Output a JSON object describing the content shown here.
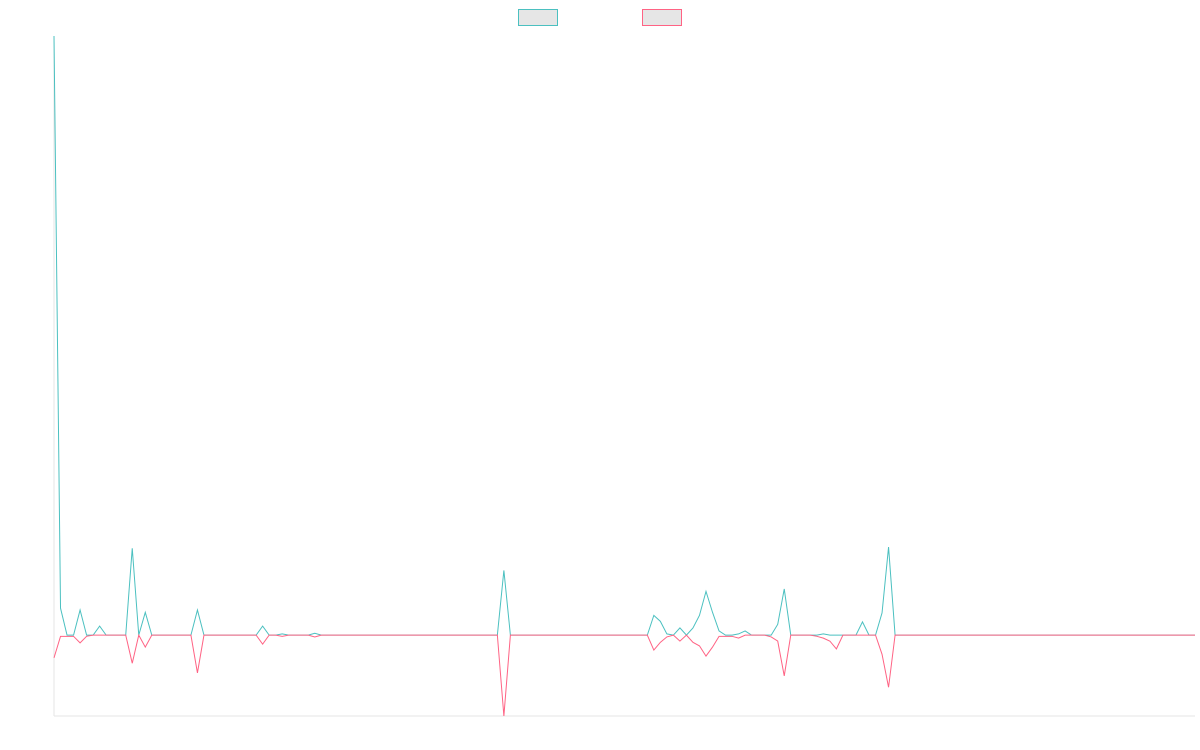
{
  "chart_data": {
    "type": "line",
    "ylim": [
      -13.5,
      100
    ],
    "series": [
      {
        "color": "#4bc0c0",
        "values": [
          100,
          4.5,
          0,
          0,
          4.2,
          0,
          0,
          1.5,
          0,
          0,
          0,
          0,
          14.5,
          0,
          3.8,
          0,
          0,
          0,
          0,
          0,
          0,
          0,
          4.2,
          0,
          0,
          0,
          0,
          0,
          0,
          0,
          0,
          0,
          1.5,
          0,
          0,
          0.2,
          0,
          0,
          0,
          0,
          0.3,
          0,
          0,
          0,
          0,
          0,
          0,
          0,
          0,
          0,
          0,
          0,
          0,
          0,
          0,
          0,
          0,
          0,
          0,
          0,
          0,
          0,
          0,
          0,
          0,
          0,
          0,
          0,
          0,
          10.8,
          0,
          0,
          0,
          0,
          0,
          0,
          0,
          0,
          0,
          0,
          0,
          0,
          0,
          0,
          0,
          0,
          0,
          0,
          0,
          0,
          0,
          0,
          3.3,
          2.3,
          0.2,
          0,
          1.2,
          0,
          1.2,
          3.3,
          7.3,
          3.8,
          0.7,
          0,
          0,
          0.2,
          0.7,
          0,
          0,
          0,
          0,
          1.8,
          7.7,
          0,
          0,
          0,
          0,
          0,
          0.2,
          0,
          0,
          0,
          0,
          0,
          2.2,
          0,
          0,
          3.7,
          14.7,
          0,
          0,
          0,
          0,
          0,
          0,
          0,
          0,
          0,
          0,
          0,
          0,
          0,
          0,
          0,
          0,
          0,
          0,
          0,
          0,
          0,
          0,
          0,
          0,
          0,
          0,
          0,
          0,
          0,
          0,
          0,
          0,
          0,
          0,
          0,
          0,
          0,
          0,
          0,
          0,
          0,
          0,
          0,
          0,
          0,
          0,
          0
        ]
      },
      {
        "color": "#ff6384",
        "values": [
          -3.8,
          -0.2,
          -0.2,
          -0.2,
          -1.3,
          -0.2,
          0,
          0,
          0,
          0,
          0,
          0,
          -4.7,
          0,
          -2,
          0,
          0,
          0,
          0,
          0,
          0,
          0,
          -6.3,
          0,
          0,
          0,
          0,
          0,
          0,
          0,
          0,
          0,
          -1.5,
          0,
          0,
          -0.2,
          0,
          0,
          0,
          0,
          -0.3,
          0,
          0,
          0,
          0,
          0,
          0,
          0,
          0,
          0,
          0,
          0,
          0,
          0,
          0,
          0,
          0,
          0,
          0,
          0,
          0,
          0,
          0,
          0,
          0,
          0,
          0,
          0,
          0,
          -13.5,
          0,
          0,
          0,
          0,
          0,
          0,
          0,
          0,
          0,
          0,
          0,
          0,
          0,
          0,
          0,
          0,
          0,
          0,
          0,
          0,
          0,
          0,
          -2.5,
          -1.2,
          -0.3,
          0,
          -1,
          0,
          -1.2,
          -1.8,
          -3.5,
          -2,
          -0.2,
          -0.2,
          -0.2,
          -0.5,
          0,
          0,
          0,
          0,
          -0.3,
          -1,
          -6.8,
          0,
          0,
          0,
          0,
          -0.2,
          -0.5,
          -1,
          -2.3,
          0,
          0,
          0,
          0,
          0,
          0,
          -3.2,
          -8.7,
          0,
          0,
          0,
          0,
          0,
          0,
          0,
          0,
          0,
          0,
          0,
          0,
          0,
          0,
          0,
          0,
          0,
          0,
          0,
          0,
          0,
          0,
          0,
          0,
          0,
          0,
          0,
          0,
          0,
          0,
          0,
          0,
          0,
          0,
          0,
          0,
          0,
          0,
          0,
          0,
          0,
          0,
          0,
          0,
          0,
          0,
          0
        ]
      }
    ]
  }
}
